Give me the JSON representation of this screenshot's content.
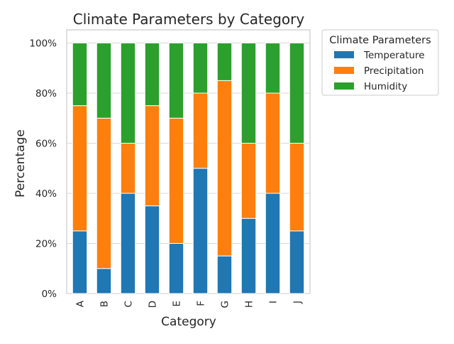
{
  "chart_data": {
    "type": "bar",
    "stacked": true,
    "title": "Climate Parameters by Category",
    "xlabel": "Category",
    "ylabel": "Percentage",
    "categories": [
      "A",
      "B",
      "C",
      "D",
      "E",
      "F",
      "G",
      "H",
      "I",
      "J"
    ],
    "ylim": [
      0,
      100
    ],
    "yticks": [
      "0%",
      "20%",
      "40%",
      "60%",
      "80%",
      "100%"
    ],
    "grid": true,
    "legend": {
      "title": "Climate Parameters",
      "placement": "outside top-right"
    },
    "series": [
      {
        "name": "Temperature",
        "color": "#1f77b4",
        "values": [
          25,
          10,
          40,
          35,
          20,
          50,
          15,
          30,
          40,
          25
        ]
      },
      {
        "name": "Precipitation",
        "color": "#ff7f0e",
        "values": [
          50,
          60,
          20,
          40,
          50,
          30,
          70,
          30,
          40,
          35
        ]
      },
      {
        "name": "Humidity",
        "color": "#2ca02c",
        "values": [
          25,
          30,
          40,
          25,
          30,
          20,
          15,
          40,
          20,
          40
        ]
      }
    ]
  }
}
